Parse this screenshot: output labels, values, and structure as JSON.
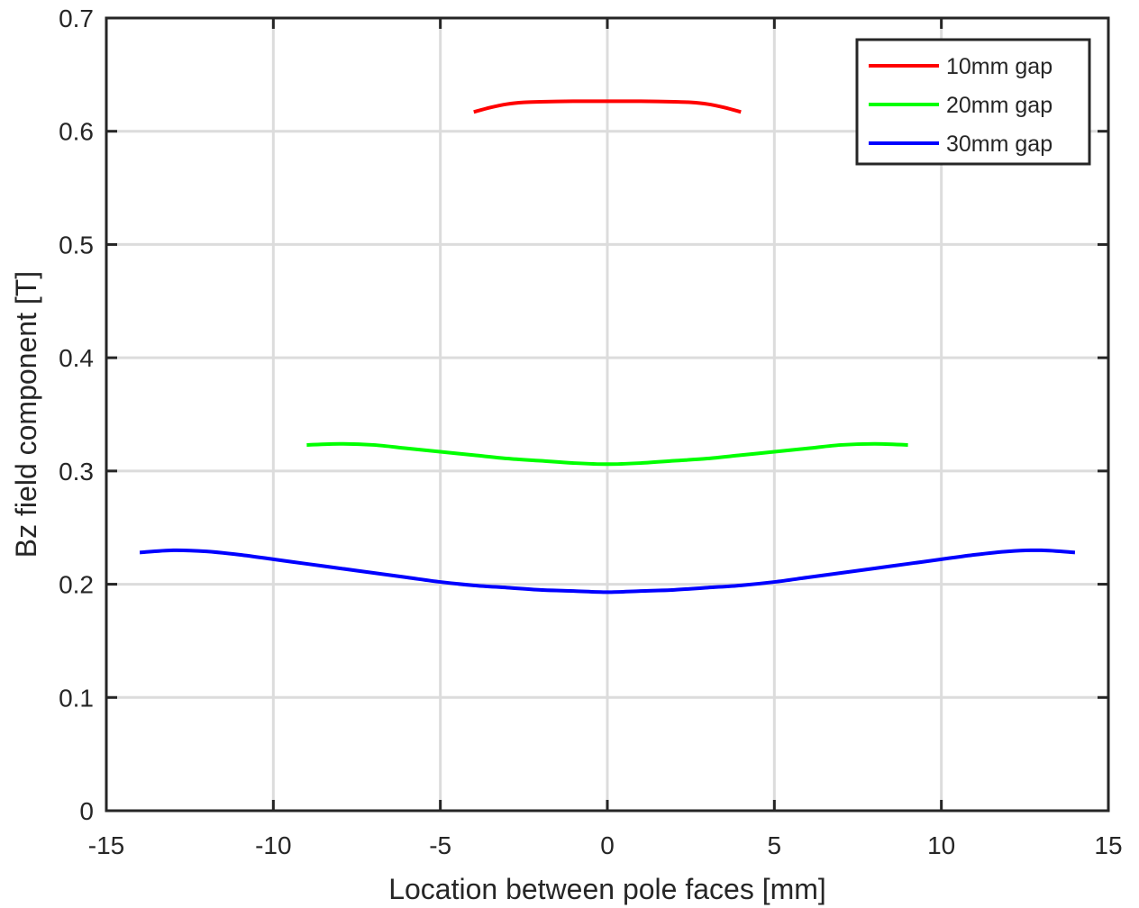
{
  "chart_data": {
    "type": "line",
    "title": "",
    "xlabel": "Location between pole faces [mm]",
    "ylabel": "Bz field component [T]",
    "xlim": [
      -15,
      15
    ],
    "ylim": [
      0,
      0.7
    ],
    "xticks": [
      -15,
      -10,
      -5,
      0,
      5,
      10,
      15
    ],
    "yticks": [
      0,
      0.1,
      0.2,
      0.3,
      0.4,
      0.5,
      0.6,
      0.7
    ],
    "xtick_labels": [
      "-15",
      "-10",
      "-5",
      "0",
      "5",
      "10",
      "15"
    ],
    "ytick_labels": [
      "0",
      "0.1",
      "0.2",
      "0.3",
      "0.4",
      "0.5",
      "0.6",
      "0.7"
    ],
    "grid": true,
    "legend_position": "top-right",
    "series": [
      {
        "name": "10mm gap",
        "color": "#ff0000",
        "x": [
          -4,
          -3.5,
          -3,
          -2.5,
          -2,
          -1.5,
          -1,
          -0.5,
          0,
          0.5,
          1,
          1.5,
          2,
          2.5,
          3,
          3.5,
          4
        ],
        "y": [
          0.617,
          0.621,
          0.624,
          0.6255,
          0.626,
          0.6263,
          0.6265,
          0.6265,
          0.6265,
          0.6265,
          0.6265,
          0.6263,
          0.626,
          0.6255,
          0.624,
          0.621,
          0.617
        ]
      },
      {
        "name": "20mm gap",
        "color": "#00ff00",
        "x": [
          -9,
          -8,
          -7,
          -6,
          -5,
          -4,
          -3,
          -2,
          -1,
          0,
          1,
          2,
          3,
          4,
          5,
          6,
          7,
          8,
          9
        ],
        "y": [
          0.323,
          0.324,
          0.323,
          0.32,
          0.317,
          0.314,
          0.311,
          0.309,
          0.307,
          0.306,
          0.307,
          0.309,
          0.311,
          0.314,
          0.317,
          0.32,
          0.323,
          0.324,
          0.323
        ]
      },
      {
        "name": "30mm gap",
        "color": "#0000ff",
        "x": [
          -14,
          -13,
          -12,
          -11,
          -10,
          -9,
          -8,
          -7,
          -6,
          -5,
          -4,
          -3,
          -2,
          -1,
          0,
          1,
          2,
          3,
          4,
          5,
          6,
          7,
          8,
          9,
          10,
          11,
          12,
          13,
          14
        ],
        "y": [
          0.228,
          0.23,
          0.229,
          0.226,
          0.222,
          0.218,
          0.214,
          0.21,
          0.206,
          0.202,
          0.199,
          0.197,
          0.195,
          0.194,
          0.193,
          0.194,
          0.195,
          0.197,
          0.199,
          0.202,
          0.206,
          0.21,
          0.214,
          0.218,
          0.222,
          0.226,
          0.229,
          0.23,
          0.228
        ]
      }
    ]
  }
}
